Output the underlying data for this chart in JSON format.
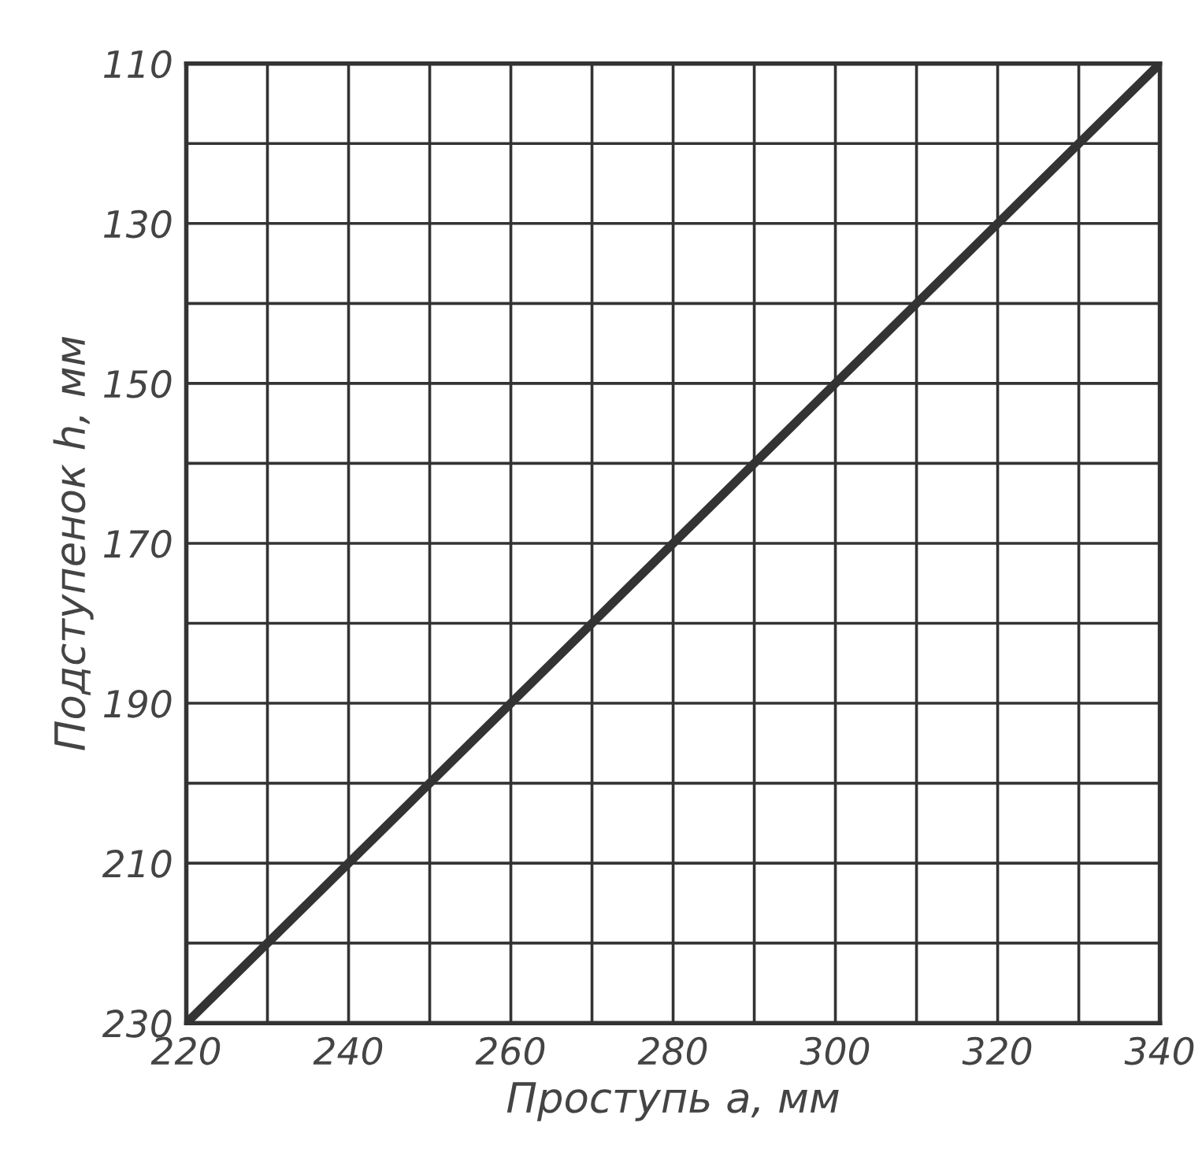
{
  "chart_data": {
    "type": "line",
    "xlabel": "Проступь a, мм",
    "ylabel": "Подступенок h, мм",
    "x": [
      220,
      250,
      280,
      310,
      340
    ],
    "series": [
      {
        "color": "#333333",
        "values": [
          230,
          200,
          170,
          140,
          110
        ]
      }
    ],
    "xlim": [
      220,
      340
    ],
    "ylim": [
      230,
      110
    ],
    "xticks": [
      220,
      {
        "value": 230,
        "label": null
      },
      240,
      {
        "value": 250,
        "label": null
      },
      260,
      {
        "value": 270,
        "label": null
      },
      280,
      {
        "value": 290,
        "label": null
      },
      300,
      {
        "value": 310,
        "label": null
      },
      320,
      {
        "value": 330,
        "label": null
      },
      340
    ],
    "yticks": [
      110,
      {
        "value": 120,
        "label": null
      },
      130,
      {
        "value": 140,
        "label": null
      },
      150,
      {
        "value": 160,
        "label": null
      },
      170,
      {
        "value": 180,
        "label": null
      },
      190,
      {
        "value": 200,
        "label": null
      },
      210,
      {
        "value": 220,
        "label": null
      },
      230
    ],
    "grid": true,
    "marker": "none",
    "line_style": "solid"
  }
}
